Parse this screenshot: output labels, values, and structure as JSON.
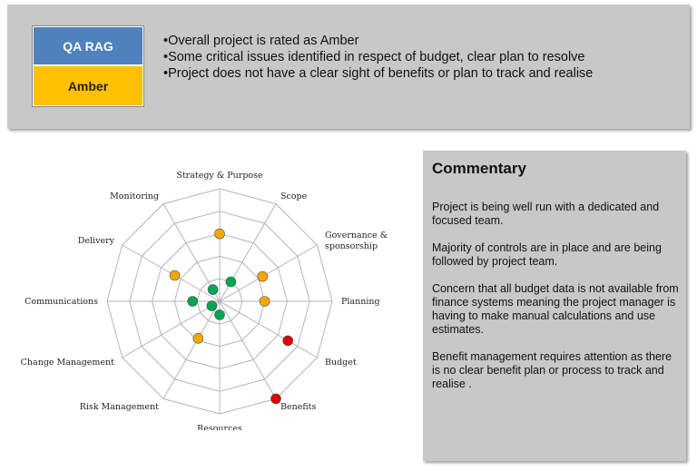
{
  "qa_rag": {
    "title": "QA RAG",
    "status": "Amber"
  },
  "summary_points": [
    "•Overall project is rated as Amber",
    "•Some critical issues identified in respect of budget, clear plan to resolve",
    "•Project does not have a clear sight of benefits or plan to track and realise"
  ],
  "commentary": {
    "title": "Commentary",
    "paragraphs": [
      "Project is being well run with a dedicated and focused team.",
      "Majority of controls are in place and are being followed by project team.",
      "Concern that all budget data is not available from finance systems meaning the project manager is having to make manual calculations and use estimates.",
      "Benefit management requires attention as there is no clear benefit plan or process to track and realise ."
    ]
  },
  "colors": {
    "green": "#00a651",
    "amber": "#f7a800",
    "red": "#e00000"
  },
  "chart_data": {
    "type": "radar",
    "title": "",
    "rings": 5,
    "range": [
      0,
      5
    ],
    "axes": [
      {
        "label": "Strategy & Purpose",
        "value": 3,
        "status": "amber"
      },
      {
        "label": "Scope",
        "value": 1,
        "status": "green"
      },
      {
        "label": "Governance & sponsorship",
        "value": 2.2,
        "status": "amber"
      },
      {
        "label": "Planning",
        "value": 2,
        "status": "amber"
      },
      {
        "label": "Budget",
        "value": 3.5,
        "status": "red"
      },
      {
        "label": "Benefits",
        "value": 5,
        "status": "red"
      },
      {
        "label": "Resources",
        "value": 0.6,
        "status": "green"
      },
      {
        "label": "Risk Management",
        "value": 1.9,
        "status": "amber"
      },
      {
        "label": "Change Management",
        "value": 0.4,
        "status": "green"
      },
      {
        "label": "Communications",
        "value": 1.2,
        "status": "green"
      },
      {
        "label": "Delivery",
        "value": 2.3,
        "status": "amber"
      },
      {
        "label": "Monitoring",
        "value": 0.6,
        "status": "green"
      }
    ]
  }
}
